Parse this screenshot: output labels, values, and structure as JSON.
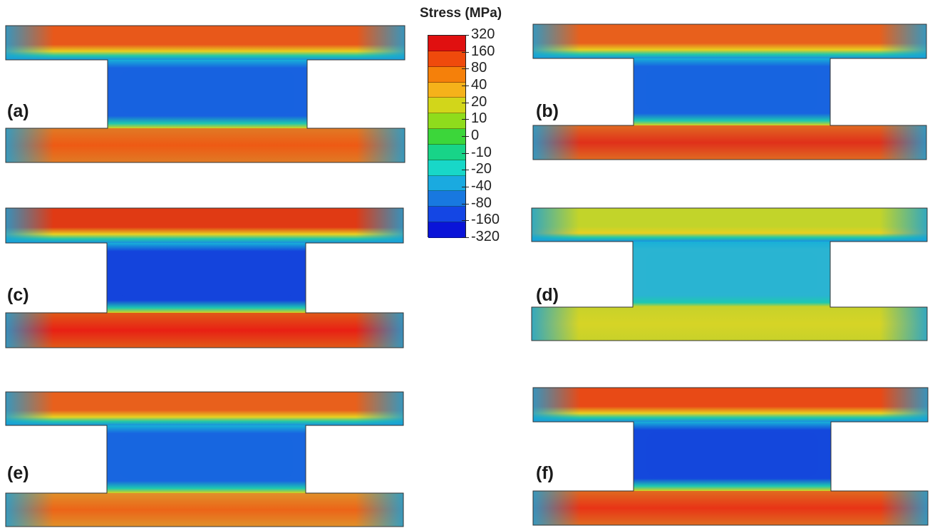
{
  "legend": {
    "title": "Stress (MPa)",
    "labels": [
      "320",
      "160",
      "80",
      "40",
      "20",
      "10",
      "0",
      "-10",
      "-20",
      "-40",
      "-80",
      "-160",
      "-320"
    ],
    "colors": [
      "#e01010",
      "#ef4a0c",
      "#f5800a",
      "#f5b21a",
      "#d2d61a",
      "#8fdc1c",
      "#3cd63a",
      "#18d488",
      "#18d7c8",
      "#1aaae0",
      "#1878e0",
      "#1446e4",
      "#0a14d8"
    ]
  },
  "panels": [
    {
      "label": "(a)",
      "top": "#e8581a",
      "bottom": "#e07a25",
      "web": "#1862e0",
      "bot_inner": "#ee5a14"
    },
    {
      "label": "(b)",
      "top": "#e8601c",
      "bottom": "#e06a22",
      "web": "#1864e0",
      "bot_inner": "#e0301a"
    },
    {
      "label": "(c)",
      "top": "#e03a14",
      "bottom": "#e05a18",
      "web": "#1444dc",
      "bot_inner": "#e82014"
    },
    {
      "label": "(d)",
      "top": "#c2d42a",
      "bottom": "#c8d22a",
      "web": "#2ab4d2",
      "bot_inner": "#d6d426"
    },
    {
      "label": "(e)",
      "top": "#e8601c",
      "bottom": "#e0902a",
      "web": "#1866e0",
      "bot_inner": "#ec6418"
    },
    {
      "label": "(f)",
      "top": "#e84a16",
      "bottom": "#e06a20",
      "web": "#1448dc",
      "bot_inner": "#e83416"
    }
  ]
}
